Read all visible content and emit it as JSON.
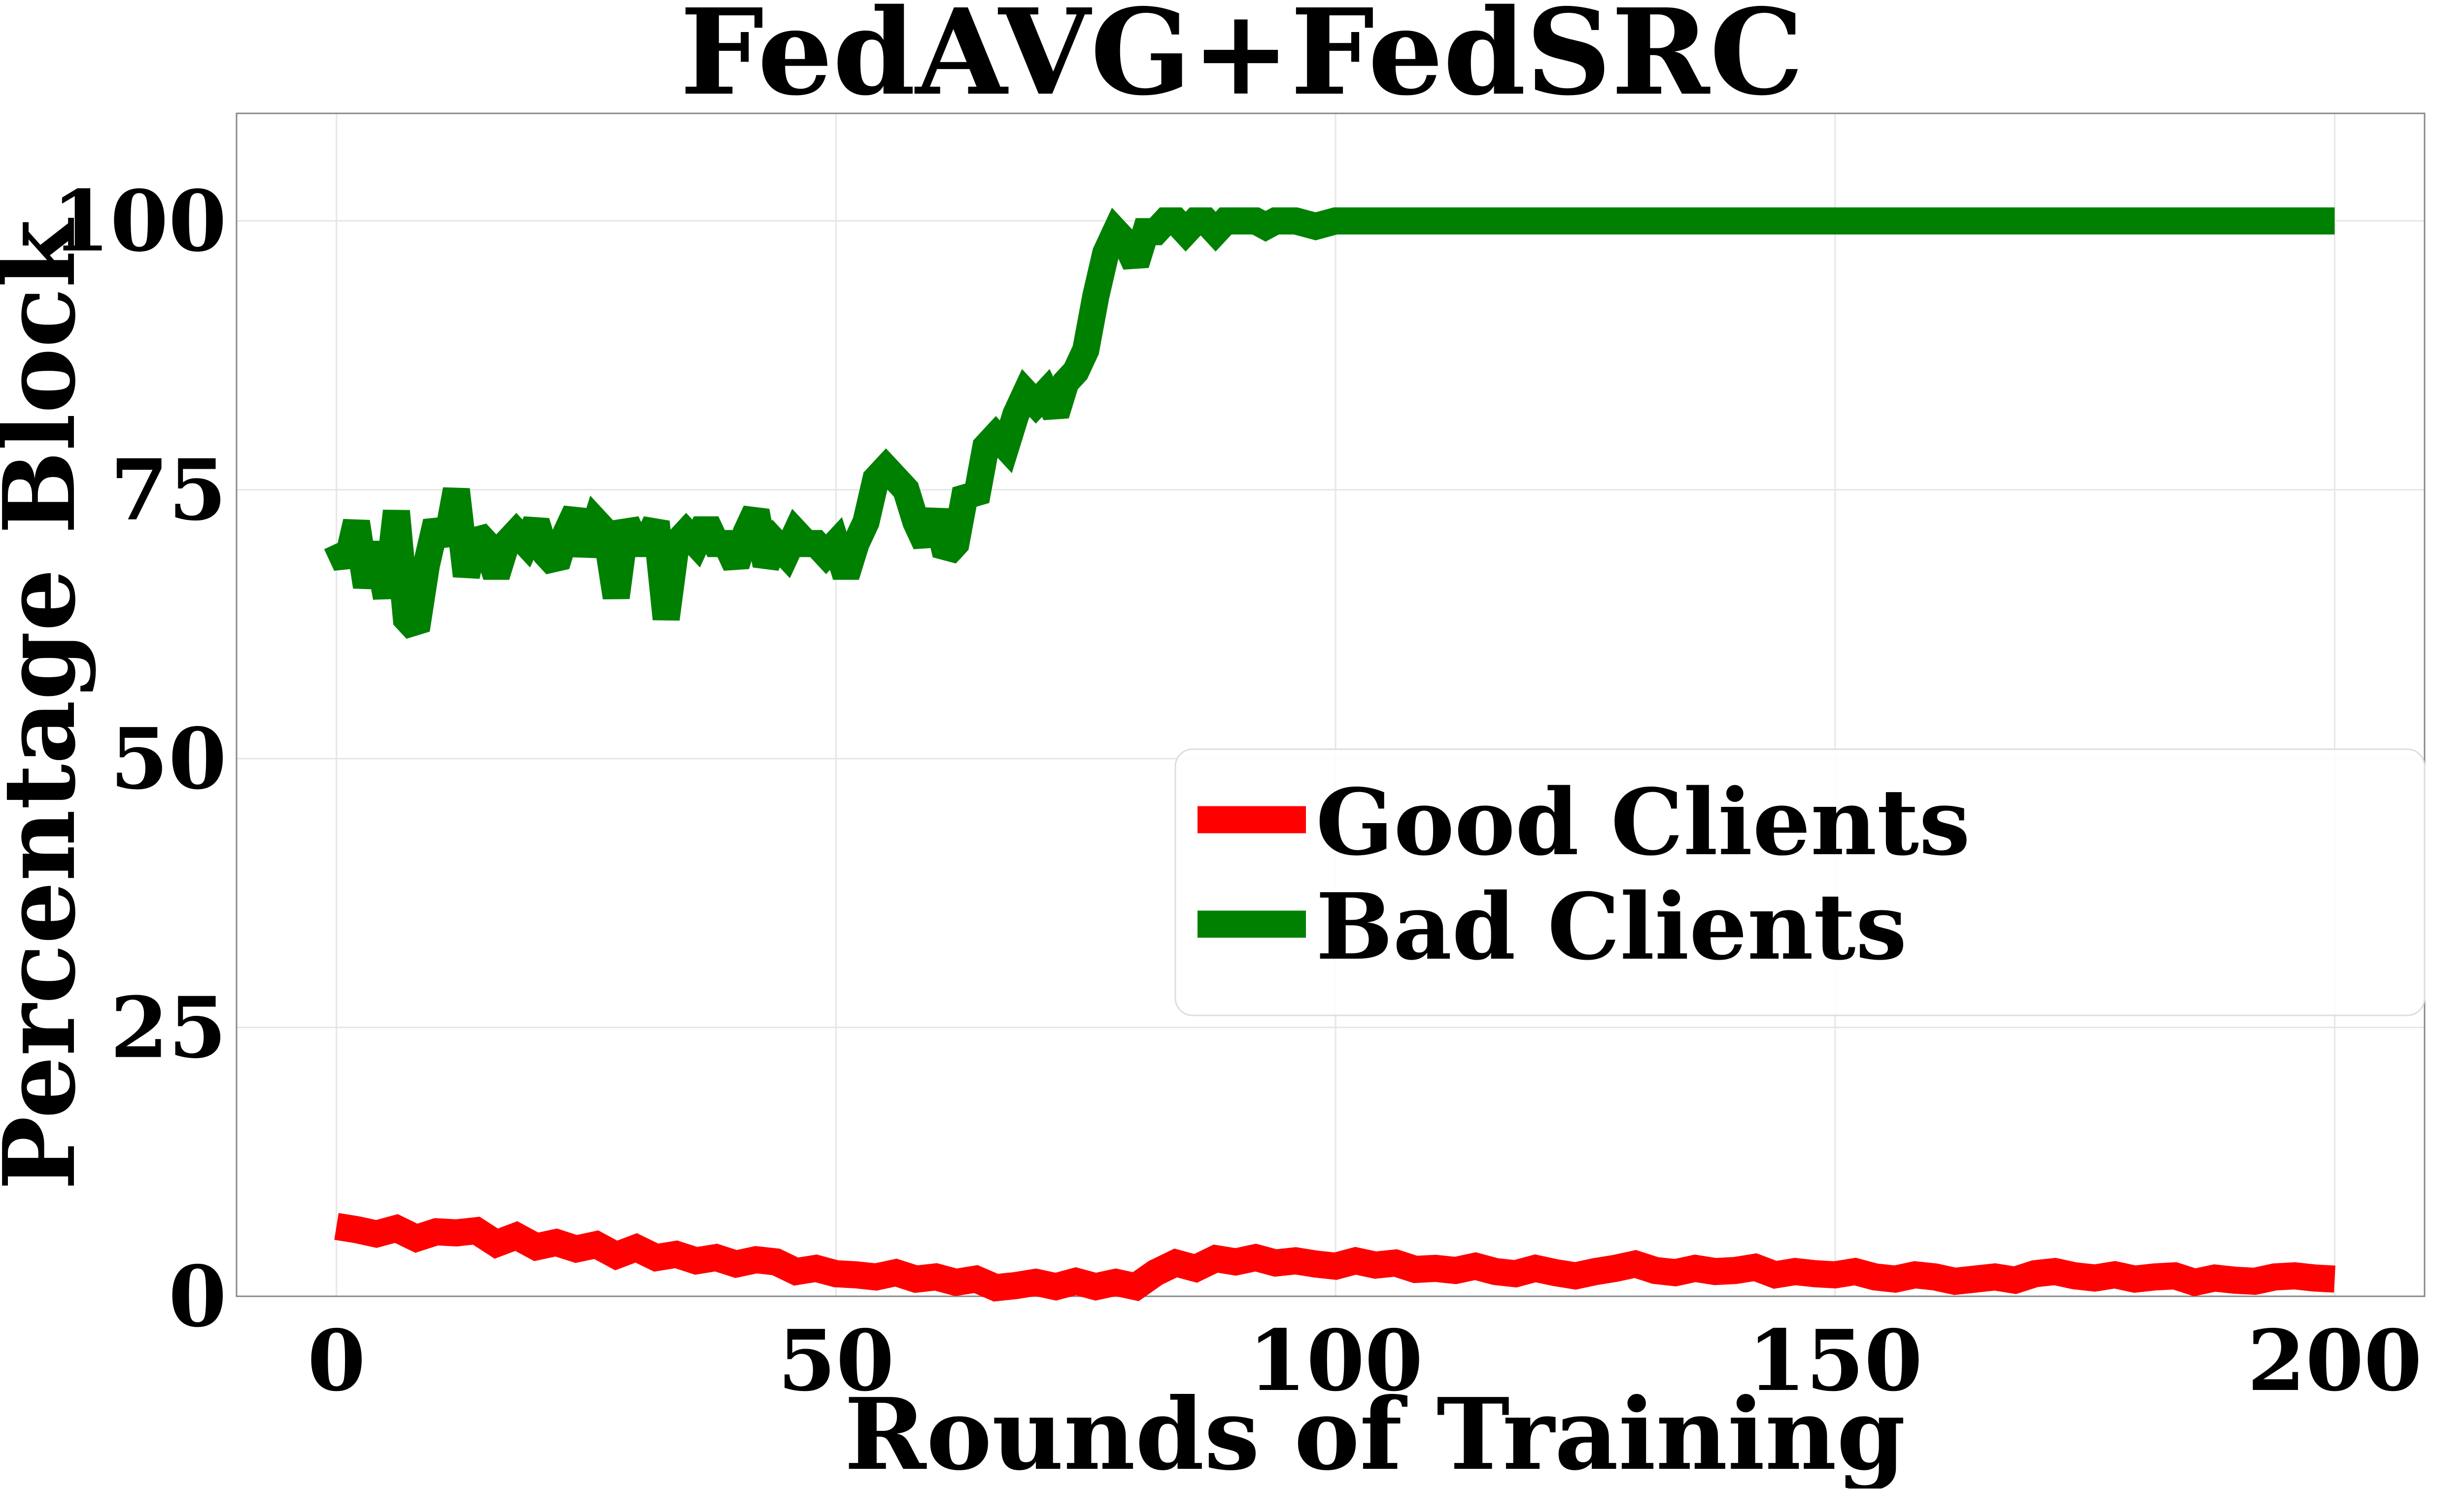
{
  "chart_data": {
    "type": "line",
    "title": "FedAVG+FedSRC",
    "xlabel": "Rounds of Training",
    "ylabel": "Percentage Block",
    "xlim": [
      -10,
      209
    ],
    "ylim": [
      0,
      110
    ],
    "xticks": [
      0,
      50,
      100,
      150,
      200
    ],
    "yticks": [
      0,
      25,
      50,
      75,
      100
    ],
    "grid": true,
    "legend_position": "center-right",
    "series": [
      {
        "name": "Good Clients",
        "color": "#ff0000",
        "x": [
          0,
          2,
          4,
          6,
          8,
          10,
          12,
          14,
          16,
          18,
          20,
          22,
          24,
          26,
          28,
          30,
          32,
          34,
          36,
          38,
          40,
          42,
          44,
          46,
          48,
          50,
          52,
          54,
          56,
          58,
          60,
          62,
          64,
          66,
          68,
          70,
          72,
          74,
          76,
          78,
          80,
          82,
          84,
          86,
          88,
          90,
          92,
          94,
          96,
          98,
          100,
          102,
          104,
          106,
          108,
          110,
          112,
          114,
          116,
          118,
          120,
          122,
          124,
          126,
          128,
          130,
          132,
          134,
          136,
          138,
          140,
          142,
          144,
          146,
          148,
          150,
          152,
          154,
          156,
          158,
          160,
          162,
          164,
          166,
          168,
          170,
          172,
          174,
          176,
          178,
          180,
          182,
          184,
          186,
          188,
          190,
          192,
          194,
          196,
          198,
          200
        ],
        "values": [
          6.5,
          6.2,
          5.8,
          6.3,
          5.4,
          6.0,
          5.9,
          6.1,
          4.9,
          5.6,
          4.6,
          5.0,
          4.4,
          4.8,
          3.8,
          4.5,
          3.6,
          3.9,
          3.3,
          3.6,
          3.0,
          3.4,
          3.2,
          2.3,
          2.6,
          2.1,
          2.0,
          1.8,
          2.2,
          1.6,
          1.8,
          1.3,
          1.6,
          0.8,
          1.0,
          1.3,
          0.9,
          1.4,
          0.9,
          1.3,
          0.9,
          2.2,
          3.1,
          2.6,
          3.5,
          3.2,
          3.6,
          3.1,
          3.3,
          3.0,
          2.8,
          3.3,
          2.9,
          3.1,
          2.5,
          2.6,
          2.4,
          2.8,
          2.3,
          2.1,
          2.6,
          2.2,
          1.9,
          2.3,
          2.6,
          3.0,
          2.4,
          2.2,
          2.6,
          2.3,
          2.4,
          2.7,
          2.0,
          2.3,
          2.1,
          2.0,
          2.3,
          1.8,
          1.6,
          2.0,
          1.8,
          1.4,
          1.6,
          1.8,
          1.5,
          2.1,
          2.3,
          1.9,
          1.7,
          2.0,
          1.6,
          1.8,
          1.9,
          1.3,
          1.7,
          1.5,
          1.4,
          1.8,
          1.9,
          1.7,
          1.6
        ]
      },
      {
        "name": "Bad Clients",
        "color": "#008000",
        "x": [
          0,
          1,
          2,
          3,
          4,
          5,
          6,
          7,
          8,
          9,
          10,
          11,
          12,
          13,
          14,
          15,
          16,
          17,
          18,
          19,
          20,
          21,
          22,
          23,
          24,
          25,
          26,
          27,
          28,
          29,
          30,
          31,
          32,
          33,
          34,
          35,
          36,
          37,
          38,
          39,
          40,
          41,
          42,
          43,
          44,
          45,
          46,
          47,
          48,
          49,
          50,
          51,
          52,
          53,
          54,
          55,
          56,
          57,
          58,
          59,
          60,
          61,
          62,
          63,
          64,
          65,
          66,
          67,
          68,
          69,
          70,
          71,
          72,
          73,
          74,
          75,
          76,
          77,
          78,
          79,
          80,
          81,
          82,
          83,
          84,
          85,
          86,
          87,
          88,
          89,
          90,
          91,
          92,
          93,
          94,
          95,
          96,
          98,
          100,
          102,
          104,
          106,
          108,
          110,
          112,
          114,
          116,
          118,
          120,
          122,
          124,
          126,
          128,
          130,
          132,
          134,
          136,
          138,
          140,
          142,
          144,
          146,
          148,
          150,
          160,
          170,
          180,
          190,
          200
        ],
        "values": [
          70,
          68,
          72,
          66,
          70,
          65,
          73,
          63,
          62,
          68,
          72,
          70,
          75,
          67,
          71,
          70,
          67,
          70,
          71,
          70,
          72,
          69,
          68,
          71,
          73,
          69,
          72,
          71,
          65,
          72,
          70,
          70,
          72,
          63,
          70,
          71,
          70,
          72,
          70,
          70,
          68,
          71,
          73,
          68,
          70,
          69,
          71,
          70,
          70,
          69,
          70,
          67,
          70,
          72,
          76,
          77,
          76,
          75,
          72,
          70,
          73,
          69,
          70,
          75,
          74,
          79,
          80,
          79,
          82,
          84,
          83,
          84,
          82,
          85,
          86,
          88,
          93,
          97,
          99,
          98,
          96,
          99,
          99,
          100,
          100,
          99,
          100,
          100,
          99,
          100,
          100,
          100,
          100,
          99.5,
          100,
          100,
          100,
          99.5,
          100,
          100,
          100,
          100,
          100,
          100,
          100,
          100,
          100,
          100,
          100,
          100,
          100,
          100,
          100,
          100,
          100,
          100,
          100,
          100,
          100,
          100,
          100,
          100,
          100,
          100,
          100,
          100,
          100,
          100,
          100
        ]
      }
    ]
  }
}
